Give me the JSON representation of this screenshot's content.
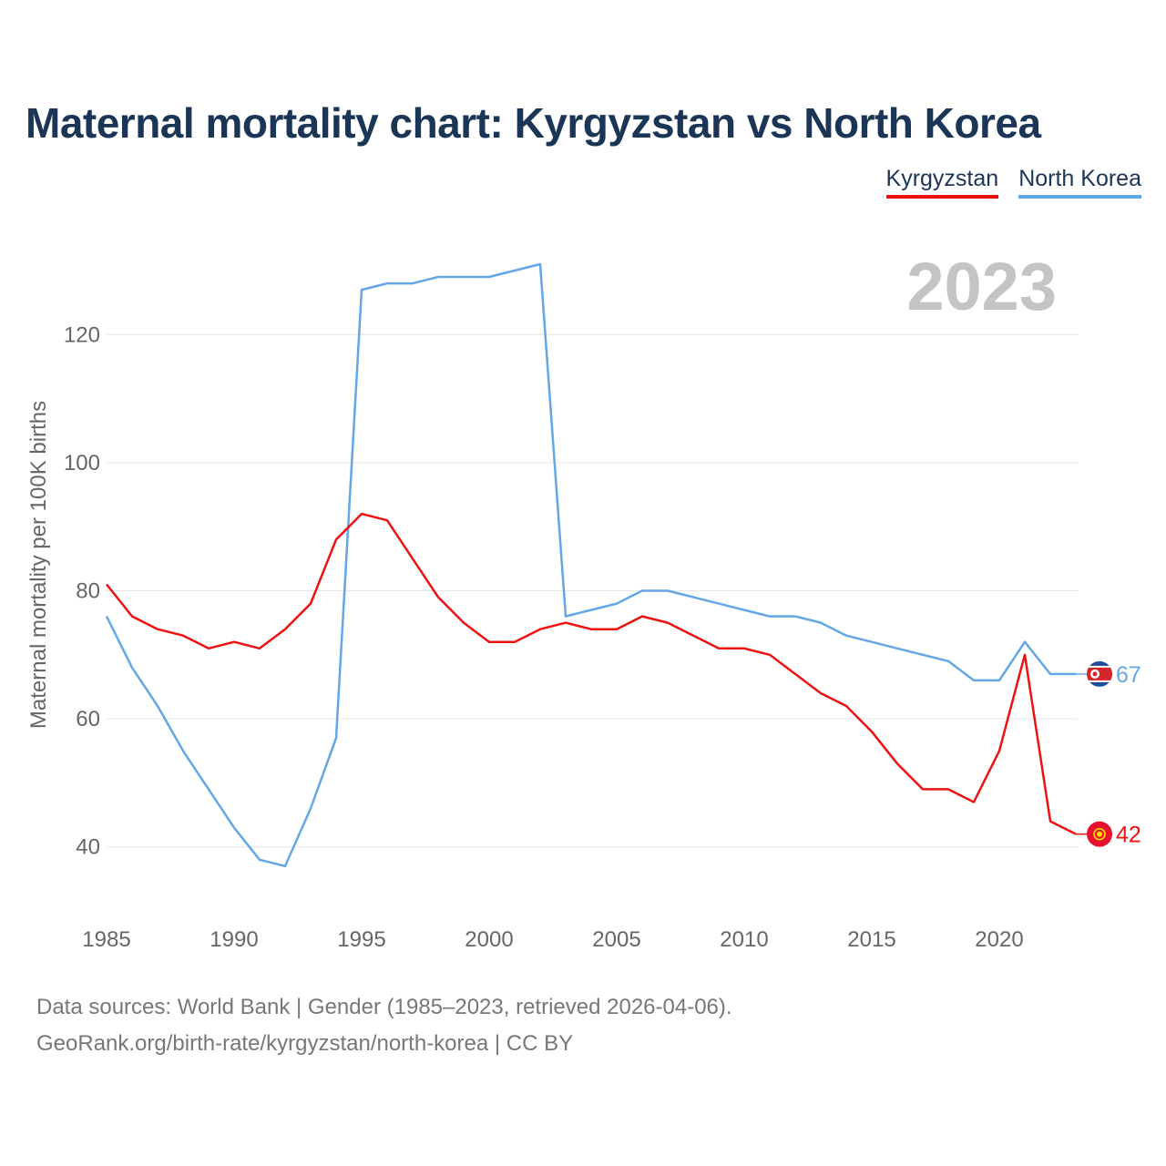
{
  "title": "Maternal mortality chart: Kyrgyzstan vs North Korea",
  "legend": [
    {
      "label": "Kyrgyzstan",
      "color": "#ee1111"
    },
    {
      "label": "North Korea",
      "color": "#64a7e4"
    }
  ],
  "footer": {
    "line1": "Data sources: World Bank | Gender (1985–2023, retrieved 2026-04-06).",
    "line2": "GeoRank.org/birth-rate/kyrgyzstan/north-korea | CC BY"
  },
  "chart_data": {
    "type": "line",
    "title": "Maternal mortality chart: Kyrgyzstan vs North Korea",
    "xlabel": "",
    "ylabel": "Maternal mortality per 100K births",
    "year_label": "2023",
    "xlim": [
      1985,
      2023
    ],
    "ylim": [
      30,
      130
    ],
    "xticks": [
      1985,
      1990,
      1995,
      2000,
      2005,
      2010,
      2015,
      2020
    ],
    "yticks": [
      40,
      60,
      80,
      100,
      120
    ],
    "grid": true,
    "legend_position": "top-right",
    "x": [
      1985,
      1986,
      1987,
      1988,
      1989,
      1990,
      1991,
      1992,
      1993,
      1994,
      1995,
      1996,
      1997,
      1998,
      1999,
      2000,
      2001,
      2002,
      2003,
      2004,
      2005,
      2006,
      2007,
      2008,
      2009,
      2010,
      2011,
      2012,
      2013,
      2014,
      2015,
      2016,
      2017,
      2018,
      2019,
      2020,
      2021,
      2022,
      2023
    ],
    "series": [
      {
        "name": "Kyrgyzstan",
        "color": "#ee1111",
        "end_label": "42",
        "flag": "kyrgyzstan-flag-icon",
        "values": [
          81,
          76,
          74,
          73,
          71,
          72,
          71,
          74,
          78,
          88,
          92,
          91,
          85,
          79,
          75,
          72,
          72,
          74,
          75,
          74,
          74,
          76,
          75,
          73,
          71,
          71,
          70,
          67,
          64,
          62,
          58,
          53,
          49,
          49,
          47,
          55,
          70,
          44,
          42
        ]
      },
      {
        "name": "North Korea",
        "color": "#64a7e4",
        "end_label": "67",
        "flag": "north-korea-flag-icon",
        "values": [
          76,
          68,
          62,
          55,
          49,
          43,
          38,
          37,
          46,
          57,
          127,
          128,
          128,
          129,
          129,
          129,
          130,
          131,
          76,
          77,
          78,
          80,
          80,
          79,
          78,
          77,
          76,
          76,
          75,
          73,
          72,
          71,
          70,
          69,
          66,
          66,
          72,
          67,
          67
        ]
      }
    ]
  }
}
